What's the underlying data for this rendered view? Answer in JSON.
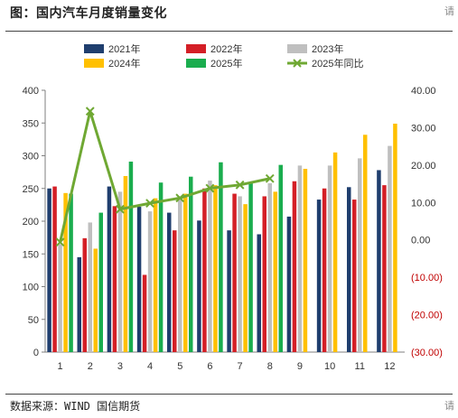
{
  "figure": {
    "title": "图：国内汽车月度销量变化",
    "source": "数据来源：WIND 国信期货",
    "corner_top_right": "请",
    "corner_bottom_right": "请"
  },
  "colors": {
    "s2021": "#1f3e6e",
    "s2022": "#d41f26",
    "s2023": "#bfbfbf",
    "s2024": "#ffc000",
    "s2025": "#1aad4e",
    "yoy": "#6fa833",
    "negative_tick": "#c00000"
  },
  "chart_data": {
    "type": "bar",
    "categories": [
      "1",
      "2",
      "3",
      "4",
      "5",
      "6",
      "7",
      "8",
      "9",
      "10",
      "11",
      "12"
    ],
    "series": [
      {
        "name": "2021年",
        "values": [
          250,
          145,
          253,
          222,
          213,
          201,
          186,
          180,
          207,
          233,
          252,
          278
        ]
      },
      {
        "name": "2022年",
        "values": [
          253,
          174,
          223,
          118,
          186,
          250,
          242,
          238,
          261,
          250,
          233,
          255
        ]
      },
      {
        "name": "2023年",
        "values": [
          165,
          198,
          245,
          215,
          238,
          262,
          238,
          258,
          285,
          285,
          296,
          315
        ]
      },
      {
        "name": "2024年",
        "values": [
          243,
          158,
          269,
          235,
          242,
          255,
          226,
          245,
          280,
          305,
          332,
          349
        ]
      },
      {
        "name": "2025年",
        "values": [
          242,
          213,
          291,
          259,
          268,
          290,
          259,
          286,
          null,
          null,
          null,
          null
        ]
      }
    ],
    "line_series": {
      "name": "2025年同比",
      "axis": "right",
      "values": [
        -0.6,
        34.4,
        8.2,
        9.8,
        11.2,
        13.8,
        14.7,
        16.4,
        null,
        null,
        null,
        null
      ]
    },
    "left_axis": {
      "ylim": [
        0,
        400
      ],
      "ticks": [
        "0",
        "50",
        "100",
        "150",
        "200",
        "250",
        "300",
        "350",
        "400"
      ]
    },
    "right_axis": {
      "ylim": [
        -30,
        40
      ],
      "ticks": [
        "(30.00)",
        "(20.00)",
        "(10.00)",
        "0.00",
        "10.00",
        "20.00",
        "30.00",
        "40.00"
      ]
    },
    "grid": false,
    "legend_position": "top"
  }
}
